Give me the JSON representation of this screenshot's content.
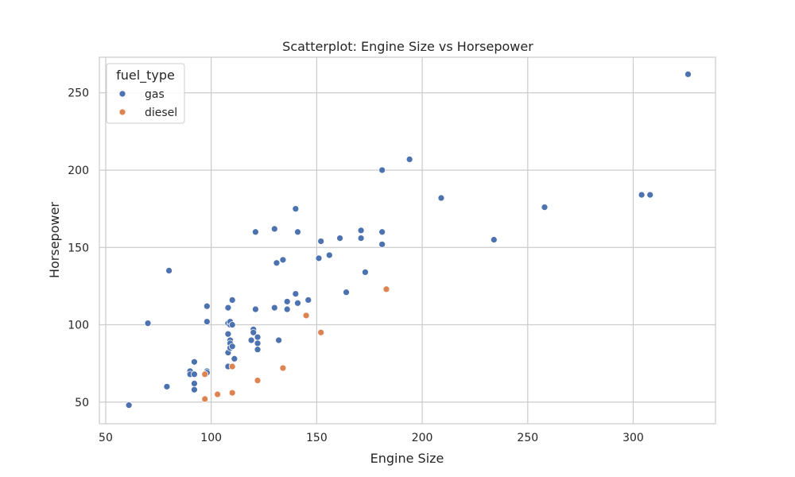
{
  "chart_data": {
    "type": "scatter",
    "title": "Scatterplot: Engine Size vs Horsepower",
    "xlabel": "Engine Size",
    "ylabel": "Horsepower",
    "xlim": [
      47,
      339
    ],
    "ylim": [
      36,
      273
    ],
    "xticks": [
      50,
      100,
      150,
      200,
      250,
      300
    ],
    "yticks": [
      50,
      100,
      150,
      200,
      250
    ],
    "grid": true,
    "legend": {
      "title": "fuel_type",
      "placement": "top-left",
      "entries": [
        {
          "label": "gas",
          "color": "#4c72b0"
        },
        {
          "label": "diesel",
          "color": "#dd8452"
        }
      ]
    },
    "series": [
      {
        "name": "gas",
        "color": "#4c72b0",
        "points": [
          [
            61,
            48
          ],
          [
            70,
            101
          ],
          [
            79,
            60
          ],
          [
            80,
            135
          ],
          [
            90,
            70
          ],
          [
            90,
            68
          ],
          [
            92,
            76
          ],
          [
            92,
            68
          ],
          [
            92,
            62
          ],
          [
            92,
            58
          ],
          [
            98,
            112
          ],
          [
            98,
            102
          ],
          [
            98,
            70
          ],
          [
            98,
            69
          ],
          [
            108,
            111
          ],
          [
            108,
            101
          ],
          [
            108,
            94
          ],
          [
            108,
            82
          ],
          [
            108,
            73
          ],
          [
            109,
            100
          ],
          [
            109,
            102
          ],
          [
            109,
            90
          ],
          [
            109,
            88
          ],
          [
            109,
            85
          ],
          [
            110,
            116
          ],
          [
            110,
            100
          ],
          [
            110,
            86
          ],
          [
            111,
            78
          ],
          [
            119,
            90
          ],
          [
            120,
            97
          ],
          [
            120,
            95
          ],
          [
            121,
            160
          ],
          [
            121,
            110
          ],
          [
            122,
            92
          ],
          [
            122,
            88
          ],
          [
            122,
            84
          ],
          [
            130,
            162
          ],
          [
            130,
            111
          ],
          [
            131,
            140
          ],
          [
            132,
            90
          ],
          [
            134,
            142
          ],
          [
            136,
            115
          ],
          [
            136,
            110
          ],
          [
            140,
            175
          ],
          [
            140,
            120
          ],
          [
            141,
            160
          ],
          [
            141,
            114
          ],
          [
            146,
            116
          ],
          [
            151,
            143
          ],
          [
            152,
            154
          ],
          [
            156,
            145
          ],
          [
            161,
            156
          ],
          [
            164,
            121
          ],
          [
            171,
            161
          ],
          [
            171,
            156
          ],
          [
            173,
            134
          ],
          [
            181,
            200
          ],
          [
            181,
            160
          ],
          [
            181,
            152
          ],
          [
            194,
            207
          ],
          [
            209,
            182
          ],
          [
            234,
            155
          ],
          [
            258,
            176
          ],
          [
            304,
            184
          ],
          [
            308,
            184
          ],
          [
            326,
            262
          ]
        ]
      },
      {
        "name": "diesel",
        "color": "#dd8452",
        "points": [
          [
            97,
            68
          ],
          [
            97,
            52
          ],
          [
            103,
            55
          ],
          [
            110,
            73
          ],
          [
            110,
            56
          ],
          [
            122,
            64
          ],
          [
            134,
            72
          ],
          [
            145,
            106
          ],
          [
            152,
            95
          ],
          [
            183,
            123
          ]
        ]
      }
    ]
  }
}
